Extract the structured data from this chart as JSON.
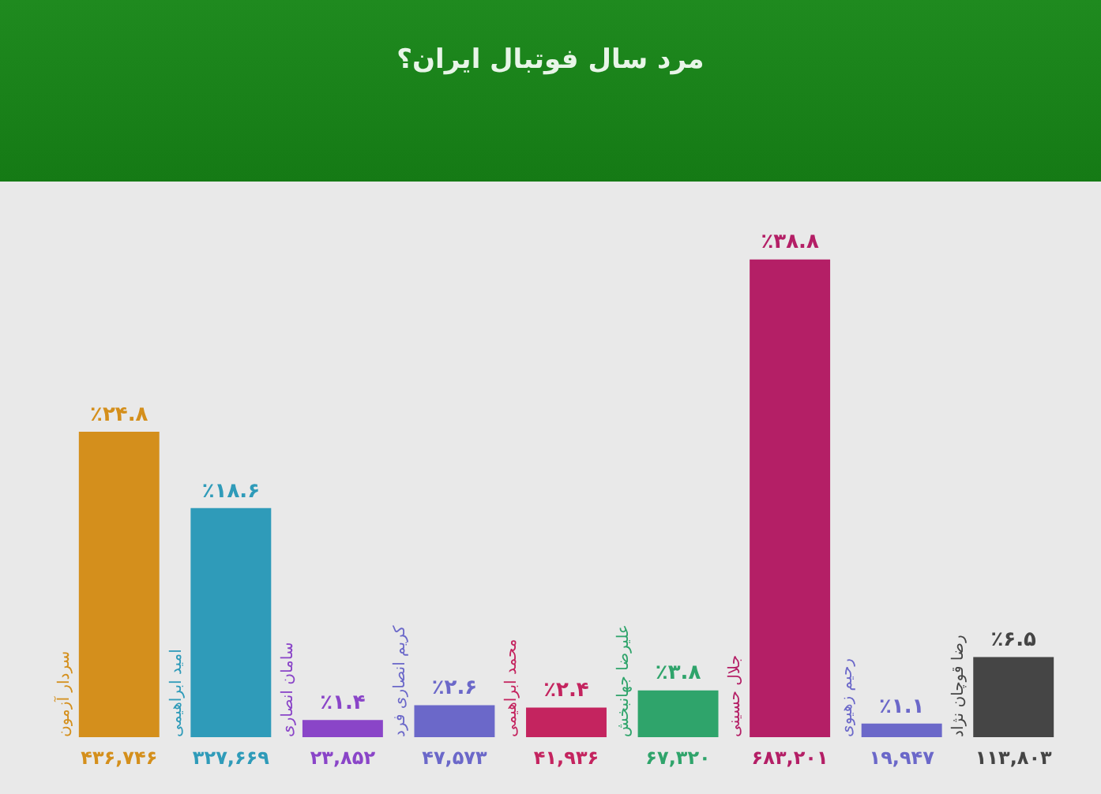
{
  "chart_data": {
    "type": "bar",
    "title": "مرد سال فوتبال ایران؟",
    "categories": [
      "سردار آزمون",
      "امید ابراهیمی",
      "سامان انصاری",
      "کریم انصاری فرد",
      "محمد ابراهیمی",
      "علیرضا جهانبخش",
      "جلال حسینی",
      "رحیم زهیوی",
      "رضا قوچان نژاد"
    ],
    "values": [
      24.8,
      18.6,
      1.4,
      2.6,
      2.4,
      3.8,
      38.8,
      1.1,
      6.5
    ],
    "value_labels": [
      "٪۲۴.۸",
      "٪۱۸.۶",
      "٪۱.۴",
      "٪۲.۶",
      "٪۲.۴",
      "٪۳.۸",
      "٪۳۸.۸",
      "٪۱.۱",
      "٪۶.۵"
    ],
    "colors": [
      "#d48f1c",
      "#2f9bb9",
      "#8a45c8",
      "#6b68c9",
      "#c4245f",
      "#2fa46b",
      "#b41f66",
      "#6b68c9",
      "#454545"
    ],
    "annotations": [
      "۴۳۶,۷۴۶",
      "۳۲۷,۶۶۹",
      "۲۳,۸۵۲",
      "۴۷,۵۷۳",
      "۴۱,۹۳۶",
      "۶۷,۳۲۰",
      "۶۸۳,۲۰۱",
      "۱۹,۹۴۷",
      "۱۱۳,۸۰۳"
    ],
    "legend": false
  }
}
